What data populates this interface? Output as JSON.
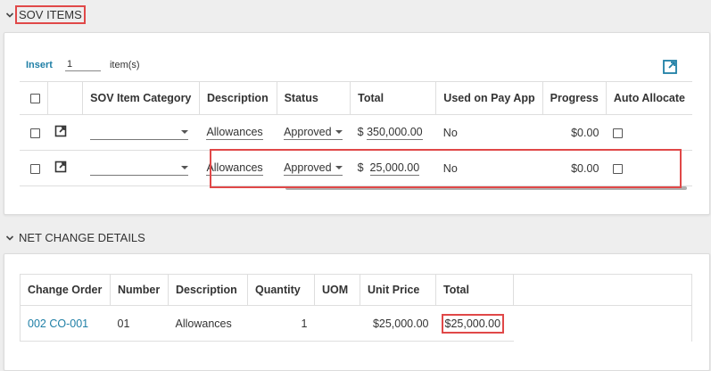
{
  "sov_section": {
    "title": "SOV ITEMS",
    "insert_label": "Insert",
    "insert_count": "1",
    "items_label": "item(s)",
    "columns": [
      "SOV Item Category",
      "Description",
      "Status",
      "Total",
      "Used on Pay App",
      "Progress",
      "Auto Allocate"
    ],
    "rows": [
      {
        "description": "Allowances",
        "status": "Approved",
        "currency": "$",
        "total": "350,000.00",
        "used_on_pay_app": "No",
        "progress": "$0.00"
      },
      {
        "description": "Allowances",
        "status": "Approved",
        "currency": "$",
        "total": "25,000.00",
        "used_on_pay_app": "No",
        "progress": "$0.00"
      }
    ]
  },
  "net_change_section": {
    "title": "NET CHANGE DETAILS",
    "columns": [
      "Change Order",
      "Number",
      "Description",
      "Quantity",
      "UOM",
      "Unit Price",
      "Total"
    ],
    "rows": [
      {
        "change_order": "002 CO-001",
        "number": "01",
        "description": "Allowances",
        "quantity": "1",
        "uom": "",
        "unit_price": "$25,000.00",
        "total": "$25,000.00"
      }
    ]
  },
  "colors": {
    "link": "#1f7fa6",
    "highlight": "#e04848"
  },
  "icons": {
    "collapse": "chevron-down-icon",
    "open": "external-link-icon"
  }
}
